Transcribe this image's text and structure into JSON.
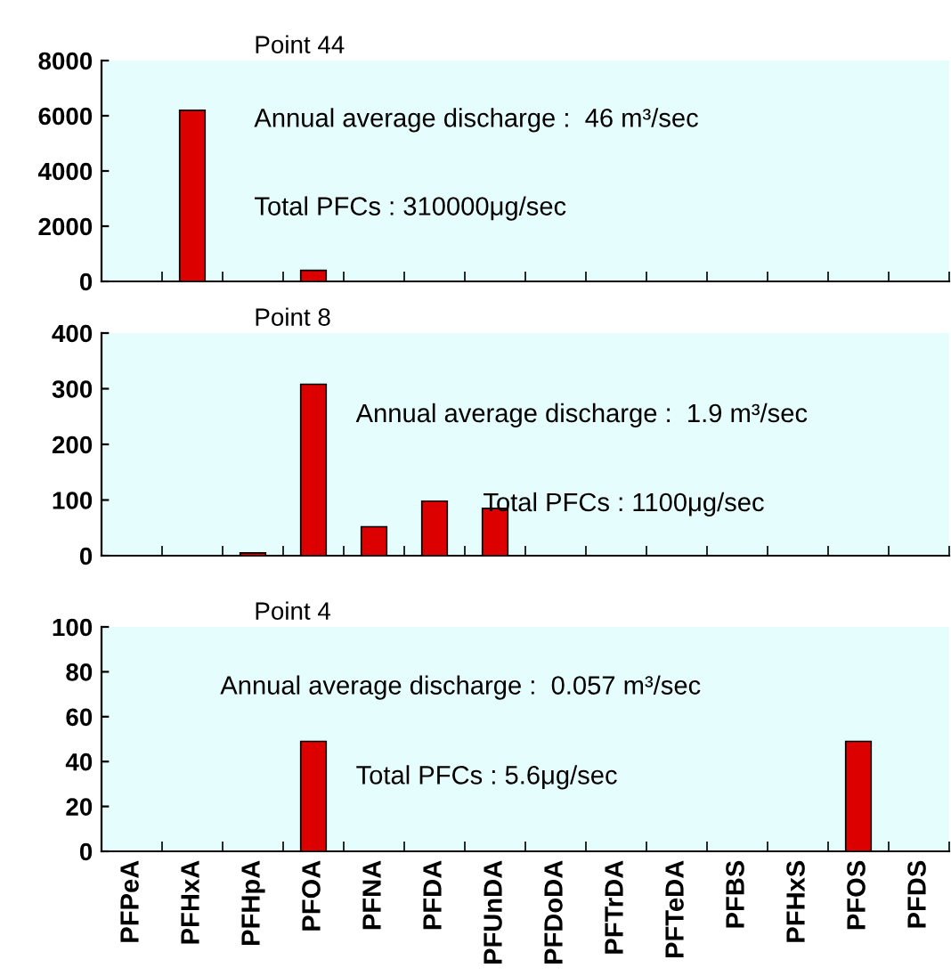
{
  "chart_data": [
    {
      "type": "bar",
      "title": "Point 44",
      "categories": [
        null,
        null,
        null,
        null,
        null,
        null,
        null,
        null,
        null,
        null,
        null,
        null,
        null,
        null
      ],
      "values": [
        null,
        6200,
        null,
        400,
        null,
        null,
        null,
        null,
        null,
        null,
        null,
        null,
        null,
        null
      ],
      "color": "#dd0000",
      "ylim": [
        0,
        8000
      ],
      "yticks": [
        0,
        2000,
        4000,
        6000,
        8000
      ],
      "annotations": [
        "Annual average discharge :  46 m³/sec",
        "Total PFCs : 310000μg/sec"
      ]
    },
    {
      "type": "bar",
      "title": "Point 8",
      "categories": [
        null,
        null,
        null,
        null,
        null,
        null,
        null,
        null,
        null,
        null,
        null,
        null,
        null,
        null
      ],
      "values": [
        null,
        null,
        5,
        308,
        52,
        98,
        85,
        null,
        null,
        null,
        null,
        null,
        null,
        null
      ],
      "color": "#dd0000",
      "ylim": [
        0,
        400
      ],
      "yticks": [
        0,
        100,
        200,
        300,
        400
      ],
      "annotations": [
        "Annual average discharge :  1.9 m³/sec",
        "Total PFCs : 1100μg/sec"
      ]
    },
    {
      "type": "bar",
      "title": "Point 4",
      "categories": [
        "PFPeA",
        "PFHxA",
        "PFHpA",
        "PFOA",
        "PFNA",
        "PFDA",
        "PFUnDA",
        "PFDoDA",
        "PFTrDA",
        "PFTeDA",
        "PFBS",
        "PFHxS",
        "PFOS",
        "PFDS"
      ],
      "values": [
        null,
        null,
        null,
        49,
        null,
        null,
        null,
        null,
        null,
        null,
        null,
        null,
        49,
        null
      ],
      "color": "#dd0000",
      "ylim": [
        0,
        100
      ],
      "yticks": [
        0,
        20,
        40,
        60,
        80,
        100
      ],
      "annotations": [
        "Annual average discharge :  0.057 m³/sec",
        "Total PFCs : 5.6μg/sec"
      ]
    }
  ]
}
